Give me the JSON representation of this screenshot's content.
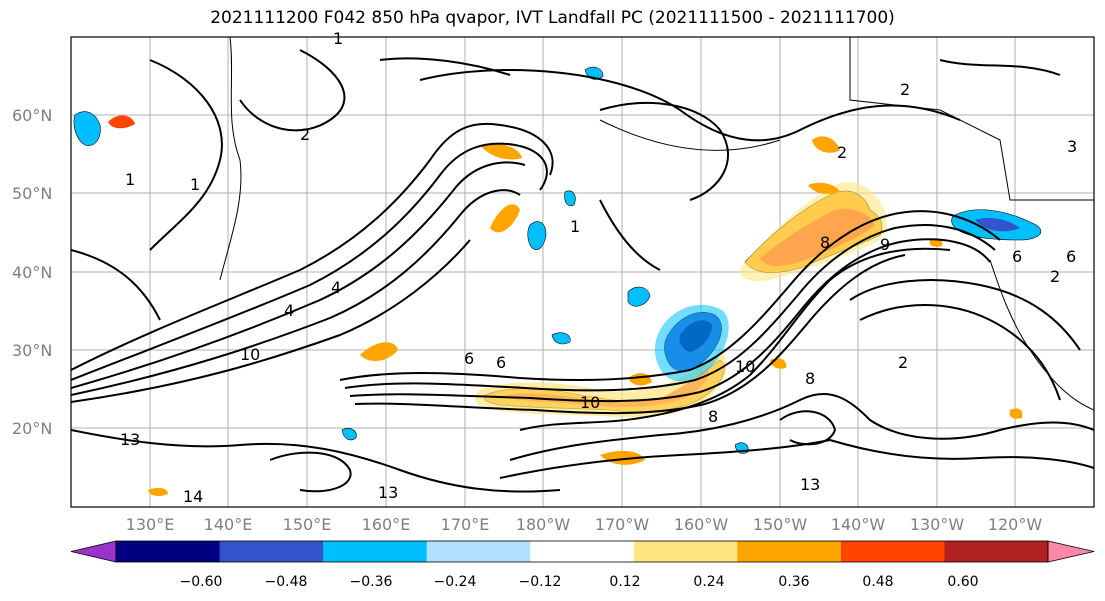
{
  "title": "2021111200 F042 850 hPa qvapor, IVT Landfall PC (2021111500 - 2021111700)",
  "lat_labels": [
    "60°N",
    "50°N",
    "40°N",
    "30°N",
    "20°N"
  ],
  "lon_labels": [
    "130°E",
    "140°E",
    "150°E",
    "160°E",
    "170°E",
    "180°W",
    "170°W",
    "160°W",
    "150°W",
    "140°W",
    "130°W",
    "120°W"
  ],
  "colorbar": {
    "ticks": [
      "−0.60",
      "−0.48",
      "−0.36",
      "−0.24",
      "−0.12",
      "0.12",
      "0.24",
      "0.36",
      "0.48",
      "0.60"
    ],
    "colors": [
      "#9933cc",
      "#000080",
      "#3355cc",
      "#00bfff",
      "#b0e0ff",
      "#ffffff",
      "#ffe680",
      "#ffa500",
      "#ff4500",
      "#b22222",
      "#ff88aa"
    ]
  },
  "contour_labels": [
    "1",
    "1",
    "1",
    "2",
    "2",
    "2",
    "2",
    "3",
    "4",
    "4",
    "6",
    "6",
    "6",
    "8",
    "8",
    "10",
    "10",
    "10",
    "13",
    "13",
    "13",
    "14",
    "1",
    "2",
    "9",
    "8",
    "6"
  ],
  "shading_colors": {
    "positive_low": "#ffe680",
    "positive_mid": "#ffa500",
    "positive_high": "#ff4500",
    "negative_low": "#b0e0ff",
    "negative_mid": "#00bfff",
    "negative_high": "#3355cc",
    "negative_max": "#000080"
  }
}
